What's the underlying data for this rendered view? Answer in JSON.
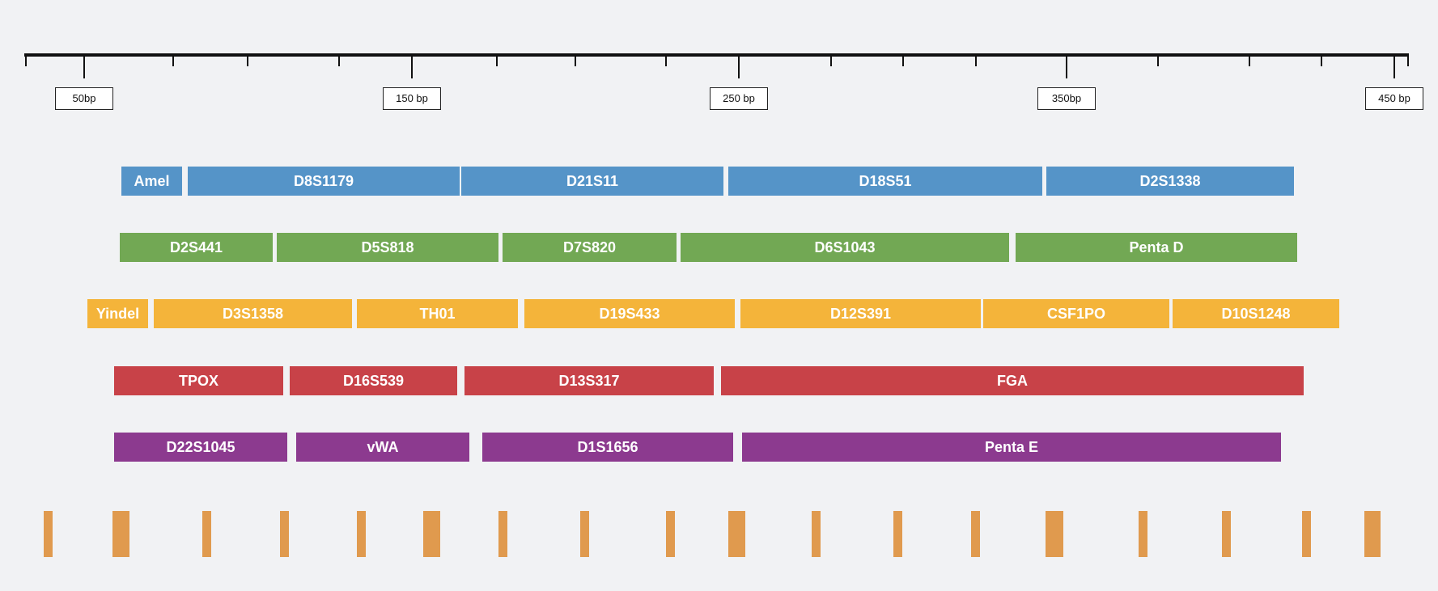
{
  "scale": {
    "labels": [
      "50bp",
      "150 bp",
      "250 bp",
      "350bp",
      "450 bp"
    ]
  },
  "colors": {
    "row1": "#5594c8",
    "row2": "#72a854",
    "row3": "#f4b43a",
    "row4": "#c84248",
    "row5": "#8c3a8f",
    "marker": "#e09a4e"
  },
  "rows": [
    {
      "color": "row1",
      "loci": [
        "Amel",
        "D8S1179",
        "D21S11",
        "D18S51",
        "D2S1338"
      ]
    },
    {
      "color": "row2",
      "loci": [
        "D2S441",
        "D5S818",
        "D7S820",
        "D6S1043",
        "Penta D"
      ]
    },
    {
      "color": "row3",
      "loci": [
        "Yindel",
        "D3S1358",
        "TH01",
        "D19S433",
        "D12S391",
        "CSF1PO",
        "D10S1248"
      ]
    },
    {
      "color": "row4",
      "loci": [
        "TPOX",
        "D16S539",
        "D13S317",
        "FGA"
      ]
    },
    {
      "color": "row5",
      "loci": [
        "D22S1045",
        "vWA",
        "D1S1656",
        "Penta E"
      ]
    }
  ]
}
